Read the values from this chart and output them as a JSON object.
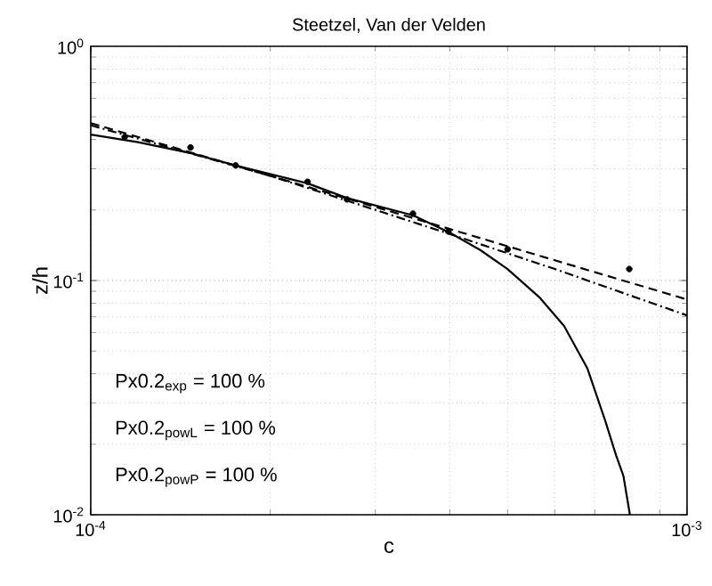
{
  "chart_data": {
    "type": "line",
    "title": "Steetzel, Van der Velden",
    "xlabel": "c",
    "ylabel": "z/h",
    "log": "xy",
    "grid": true,
    "xlim": [
      0.0001,
      0.001
    ],
    "ylim": [
      0.01,
      1
    ],
    "xticks": [
      {
        "value": 0.0001,
        "label": "10$^{-4}$"
      },
      {
        "value": 0.001,
        "label": "10$^{-3}$"
      }
    ],
    "yticks": [
      {
        "value": 0.01,
        "label": "10$^{-2}$"
      },
      {
        "value": 0.1,
        "label": "10$^{-1}$"
      },
      {
        "value": 1,
        "label": "10$^{0}$"
      }
    ],
    "annotations": [
      "Px0.2$_{exp}$ = 100 %",
      "Px0.2$_{powL}$ = 100 %",
      "Px0.2$_{powP}$ = 100 %"
    ],
    "series": [
      {
        "line_style": "solid",
        "marker": "none",
        "color": "#000000",
        "x": [
          0.0001,
          0.00012,
          0.000147,
          0.000175,
          0.000231,
          0.000269,
          0.000347,
          0.0004,
          0.00045,
          0.0005,
          0.000565,
          0.000622,
          0.000681,
          0.00073,
          0.00076,
          0.000782,
          0.000802
        ],
        "values": [
          0.42,
          0.39,
          0.35,
          0.31,
          0.26,
          0.225,
          0.19,
          0.16,
          0.135,
          0.112,
          0.085,
          0.064,
          0.042,
          0.025,
          0.018,
          0.0147,
          0.01
        ]
      },
      {
        "line_style": "dashed",
        "marker": "none",
        "color": "#000000",
        "x": [
          0.0001,
          0.0002,
          0.0004,
          0.0006,
          0.001
        ],
        "values": [
          0.47,
          0.28,
          0.166,
          0.122,
          0.083
        ]
      },
      {
        "line_style": "dashdot",
        "marker": "none",
        "color": "#000000",
        "x": [
          0.0001,
          0.0002,
          0.0004,
          0.0006,
          0.001
        ],
        "values": [
          0.46,
          0.28,
          0.158,
          0.112,
          0.071
        ]
      },
      {
        "type": "scatter",
        "marker": "circle",
        "color": "#000000",
        "x": [
          0.000114,
          0.000147,
          0.000175,
          0.000231,
          0.000269,
          0.000347,
          0.000398
        ],
        "values": [
          0.41,
          0.37,
          0.31,
          0.264,
          0.222,
          0.193,
          0.162
        ]
      },
      {
        "type": "scatter",
        "marker": "circle",
        "color": "#000000",
        "x": [
          0.0005,
          0.0008
        ],
        "values": [
          0.136,
          0.112
        ]
      }
    ]
  }
}
